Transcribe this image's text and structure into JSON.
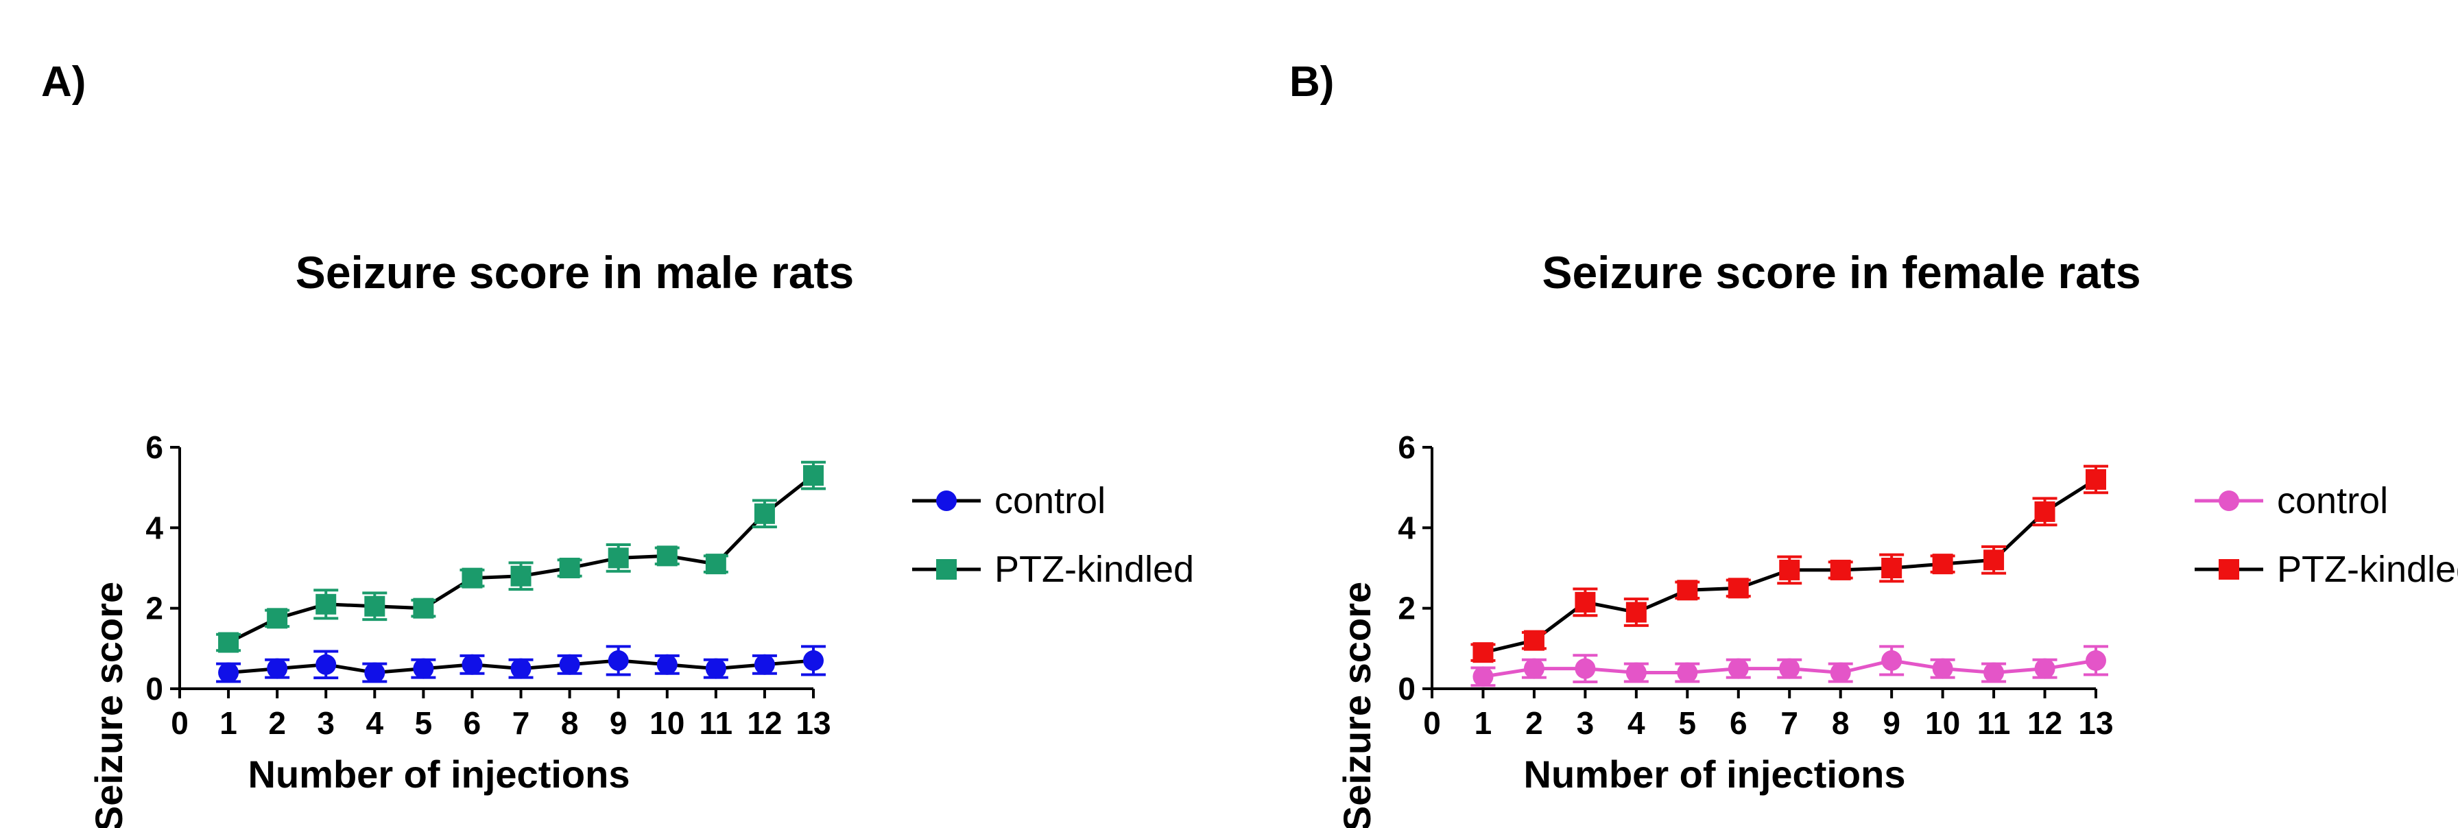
{
  "figure": {
    "panels": [
      "A)",
      "B)"
    ]
  },
  "chart_data": [
    {
      "type": "line",
      "panel": "A)",
      "title": "Seizure score in male rats",
      "xlabel": "Number of injections",
      "ylabel": "Seizure score",
      "xlim": [
        0,
        13
      ],
      "ylim": [
        0,
        6
      ],
      "xticks": [
        0,
        1,
        2,
        3,
        4,
        5,
        6,
        7,
        8,
        9,
        10,
        11,
        12,
        13
      ],
      "yticks": [
        0,
        2,
        4,
        6
      ],
      "x": [
        1,
        2,
        3,
        4,
        5,
        6,
        7,
        8,
        9,
        10,
        11,
        12,
        13
      ],
      "legend_position": "top-right-outside",
      "series": [
        {
          "name": "control",
          "marker": "circle",
          "color": "#1010e8",
          "line_color": "#000000",
          "values": [
            0.4,
            0.5,
            0.6,
            0.4,
            0.5,
            0.6,
            0.5,
            0.6,
            0.7,
            0.6,
            0.5,
            0.6,
            0.7
          ],
          "errors": [
            0.22,
            0.22,
            0.33,
            0.22,
            0.22,
            0.22,
            0.22,
            0.22,
            0.35,
            0.22,
            0.22,
            0.22,
            0.35
          ]
        },
        {
          "name": "PTZ-kindled",
          "marker": "square",
          "color": "#1b9b6b",
          "line_color": "#000000",
          "values": [
            1.15,
            1.75,
            2.1,
            2.05,
            2.0,
            2.75,
            2.8,
            3.0,
            3.25,
            3.3,
            3.1,
            4.35,
            5.3
          ],
          "errors": [
            0.2,
            0.2,
            0.35,
            0.33,
            0.2,
            0.2,
            0.33,
            0.2,
            0.33,
            0.2,
            0.2,
            0.33,
            0.33
          ]
        }
      ]
    },
    {
      "type": "line",
      "panel": "B)",
      "title": "Seizure score in female rats",
      "xlabel": "Number of injections",
      "ylabel": "Seizure score",
      "xlim": [
        0,
        13
      ],
      "ylim": [
        0,
        6
      ],
      "xticks": [
        0,
        1,
        2,
        3,
        4,
        5,
        6,
        7,
        8,
        9,
        10,
        11,
        12,
        13
      ],
      "yticks": [
        0,
        2,
        4,
        6
      ],
      "x": [
        1,
        2,
        3,
        4,
        5,
        6,
        7,
        8,
        9,
        10,
        11,
        12,
        13
      ],
      "legend_position": "top-right-outside",
      "series": [
        {
          "name": "control",
          "marker": "circle",
          "color": "#e455c8",
          "line_color": "#e455c8",
          "values": [
            0.3,
            0.5,
            0.5,
            0.4,
            0.4,
            0.5,
            0.5,
            0.4,
            0.7,
            0.5,
            0.4,
            0.5,
            0.7
          ],
          "errors": [
            0.22,
            0.22,
            0.33,
            0.22,
            0.22,
            0.22,
            0.22,
            0.22,
            0.35,
            0.22,
            0.22,
            0.22,
            0.35
          ]
        },
        {
          "name": "PTZ-kindled",
          "marker": "square",
          "color": "#ee1111",
          "line_color": "#000000",
          "values": [
            0.9,
            1.2,
            2.15,
            1.9,
            2.45,
            2.5,
            2.95,
            2.95,
            3.0,
            3.1,
            3.2,
            4.4,
            5.2
          ],
          "errors": [
            0.2,
            0.2,
            0.33,
            0.33,
            0.2,
            0.2,
            0.33,
            0.2,
            0.33,
            0.2,
            0.33,
            0.33,
            0.33
          ]
        }
      ]
    }
  ]
}
